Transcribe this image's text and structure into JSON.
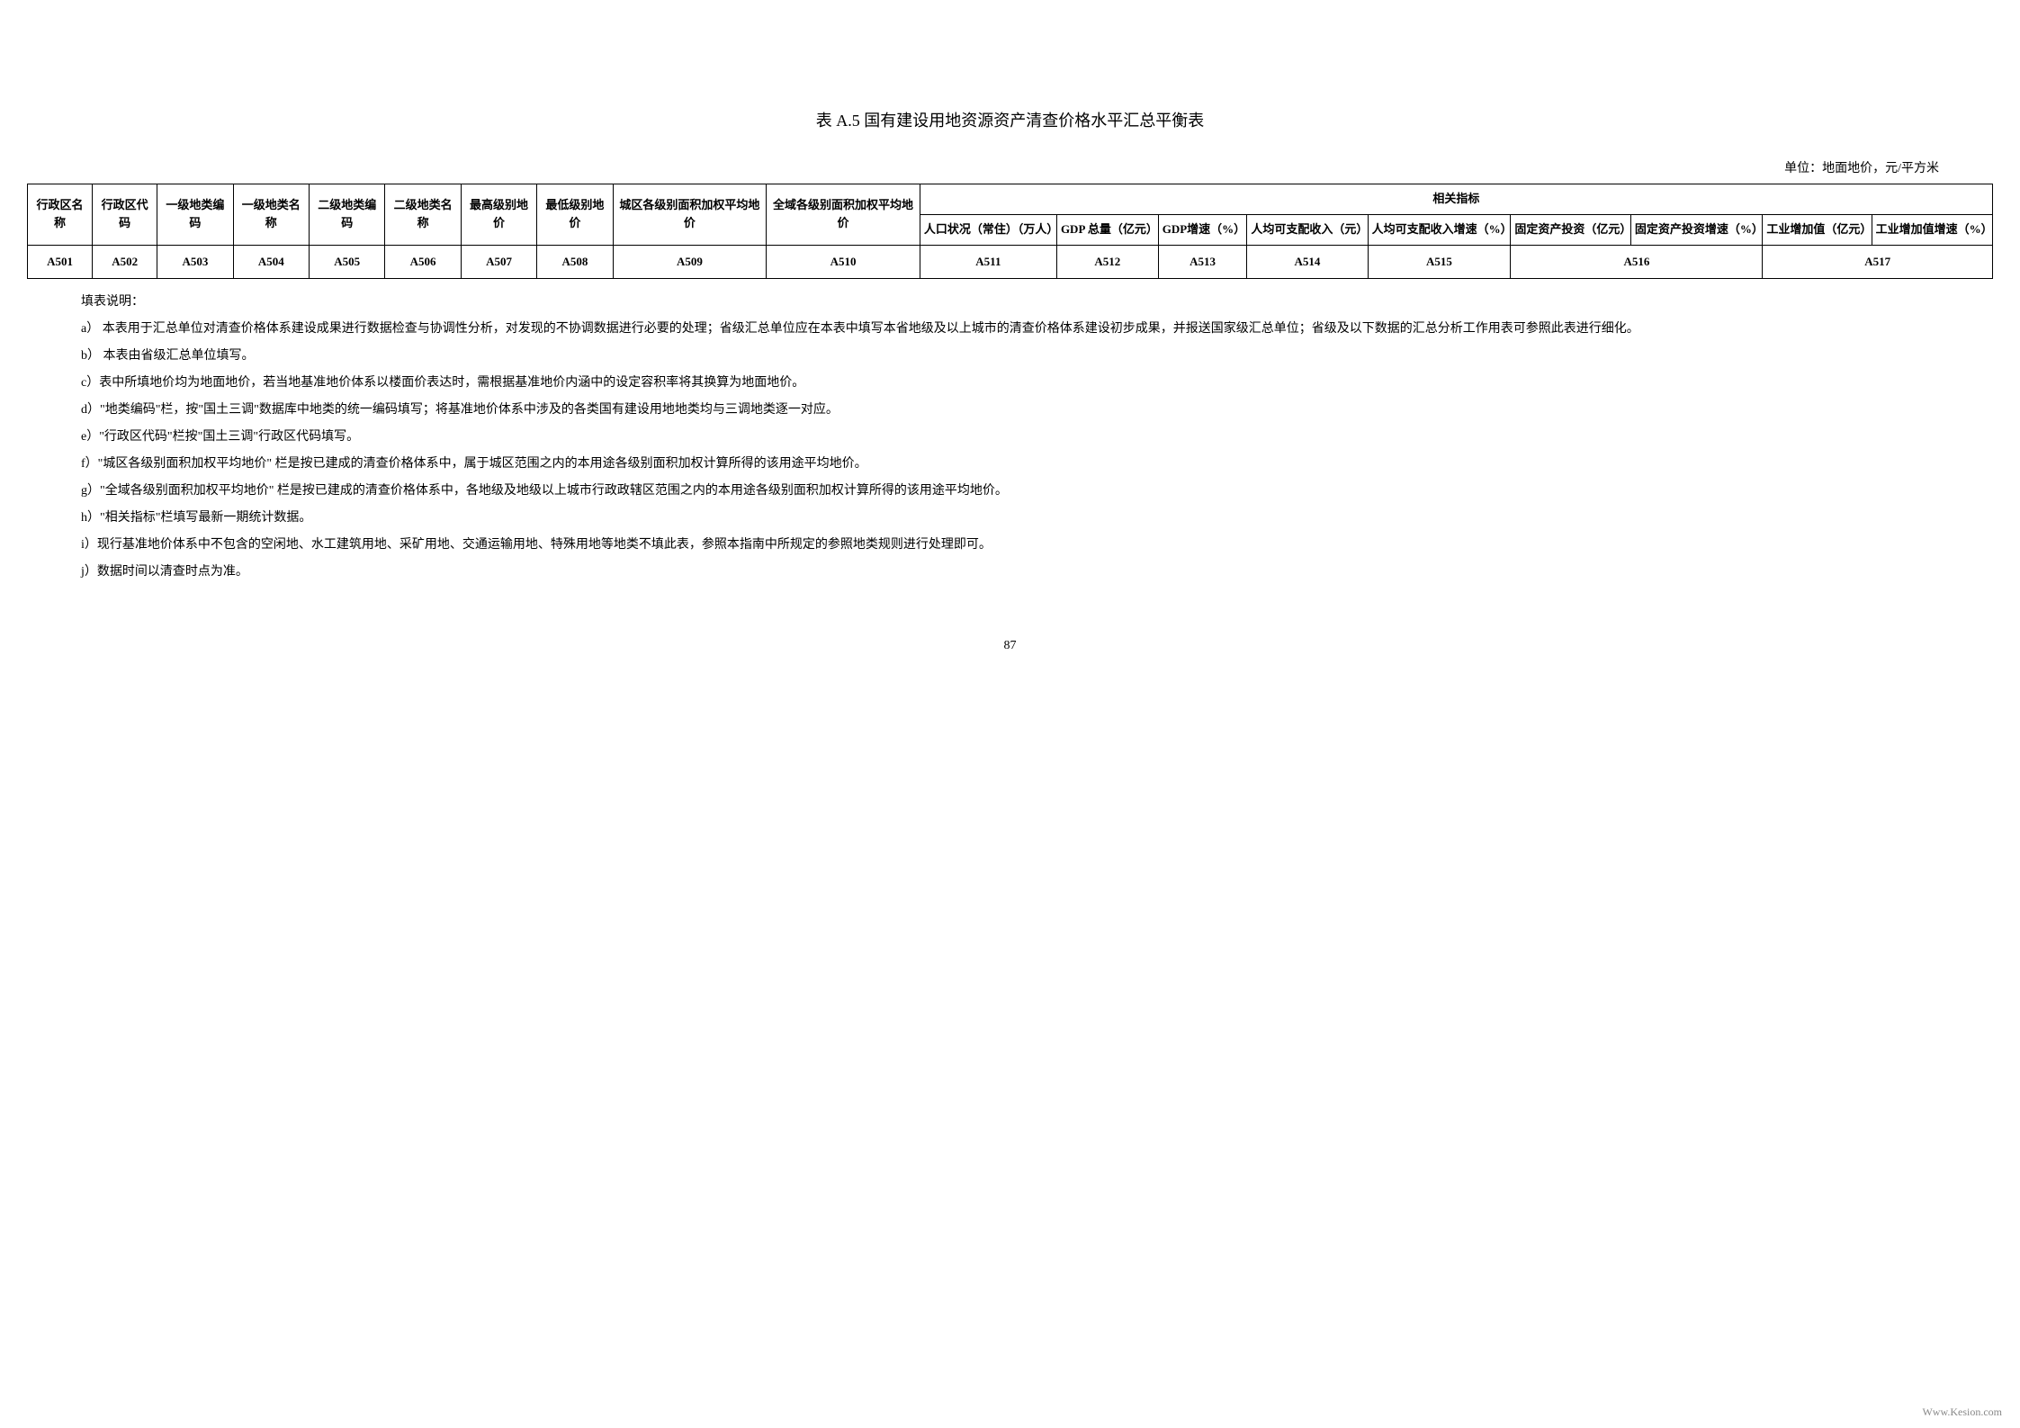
{
  "title": "表 A.5  国有建设用地资源资产清查价格水平汇总平衡表",
  "unit": "单位：地面地价，元/平方米",
  "headers": {
    "group": "相关指标",
    "cols": [
      "行政区名称",
      "行政区代码",
      "一级地类编码",
      "一级地类名称",
      "二级地类编码",
      "二级地类名称",
      "最高级别地价",
      "最低级别地价",
      "城区各级别面积加权平均地价",
      "全域各级别面积加权平均地价",
      "人口状况（常住）（万人）",
      "GDP 总量（亿元）",
      "GDP增速（%）",
      "人均可支配收入（元）",
      "人均可支配收入增速（%）",
      "固定资产投资（亿元）",
      "固定资产投资增速（%）",
      "工业增加值（亿元）",
      "工业增加值增速（%）"
    ]
  },
  "codes": [
    "A501",
    "A502",
    "A503",
    "A504",
    "A505",
    "A506",
    "A507",
    "A508",
    "A509",
    "A510",
    "A511",
    "A512",
    "A513",
    "A514",
    "A515",
    "A516",
    "A517"
  ],
  "notes_title": "填表说明：",
  "notes": [
    "a）  本表用于汇总单位对清查价格体系建设成果进行数据检查与协调性分析，对发现的不协调数据进行必要的处理；省级汇总单位应在本表中填写本省地级及以上城市的清查价格体系建设初步成果，并报送国家级汇总单位；省级及以下数据的汇总分析工作用表可参照此表进行细化。",
    "b）  本表由省级汇总单位填写。",
    "c）表中所填地价均为地面地价，若当地基准地价体系以楼面价表达时，需根据基准地价内涵中的设定容积率将其换算为地面地价。",
    "d）\"地类编码\"栏，按\"国土三调\"数据库中地类的统一编码填写；将基准地价体系中涉及的各类国有建设用地地类均与三调地类逐一对应。",
    "e）\"行政区代码\"栏按\"国土三调\"行政区代码填写。",
    "f）\"城区各级别面积加权平均地价\"  栏是按已建成的清查价格体系中，属于城区范围之内的本用途各级别面积加权计算所得的该用途平均地价。",
    "g）\"全域各级别面积加权平均地价\"  栏是按已建成的清查价格体系中，各地级及地级以上城市行政政辖区范围之内的本用途各级别面积加权计算所得的该用途平均地价。",
    "h）\"相关指标\"栏填写最新一期统计数据。",
    "i）现行基准地价体系中不包含的空闲地、水工建筑用地、采矿用地、交通运输用地、特殊用地等地类不填此表，参照本指南中所规定的参照地类规则进行处理即可。",
    "j）数据时间以清查时点为准。"
  ],
  "page_number": "87",
  "watermark": "Www.Kesion.com"
}
